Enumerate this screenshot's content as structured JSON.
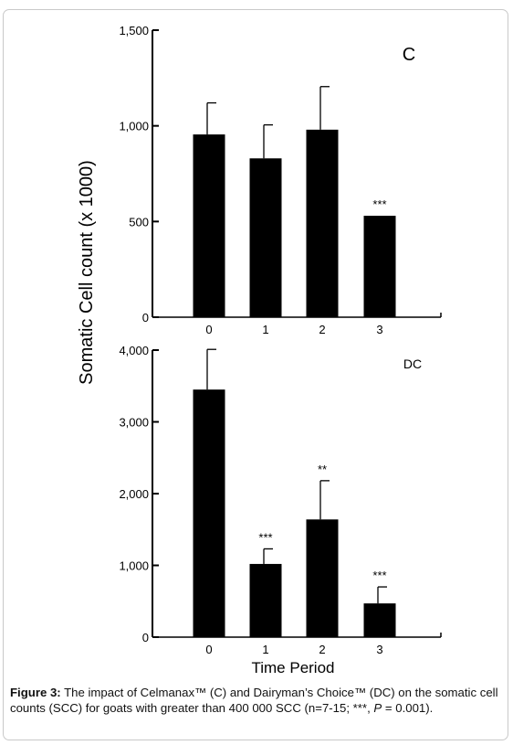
{
  "shared_ylabel": "Somatic  Cell count (x 1000)",
  "shared_xlabel": "Time Period",
  "caption": {
    "label": "Figure 3:",
    "text_part1": " The impact of Celmanax™ (C) and Dairyman’s Choice™ (DC) on the somatic cell counts (SCC) for goats with greater than 400 000 SCC (n=7-15; ***, ",
    "p_symbol": "P",
    "text_part2": " = 0.001)."
  },
  "colors": {
    "bar": "#000000",
    "axis": "#000000"
  },
  "chart_data": [
    {
      "type": "bar",
      "panel_label": "C",
      "categories": [
        "0",
        "1",
        "2",
        "3"
      ],
      "values": [
        955,
        830,
        980,
        530
      ],
      "errors": [
        165,
        175,
        225,
        0
      ],
      "significance": [
        "",
        "",
        "",
        "***"
      ],
      "ylim": [
        0,
        1500
      ],
      "yticks": [
        0,
        500,
        1000,
        1500
      ],
      "yticklabels": [
        "0",
        "500",
        "1,000",
        "1,500"
      ]
    },
    {
      "type": "bar",
      "panel_label": "DC",
      "categories": [
        "0",
        "1",
        "2",
        "3"
      ],
      "values": [
        3450,
        1020,
        1640,
        470
      ],
      "errors": [
        560,
        210,
        540,
        230
      ],
      "significance": [
        "",
        "***",
        "**",
        "***"
      ],
      "ylim": [
        0,
        4000
      ],
      "yticks": [
        0,
        1000,
        2000,
        3000,
        4000
      ],
      "yticklabels": [
        "0",
        "1,000",
        "2,000",
        "3,000",
        "4,000"
      ]
    }
  ]
}
